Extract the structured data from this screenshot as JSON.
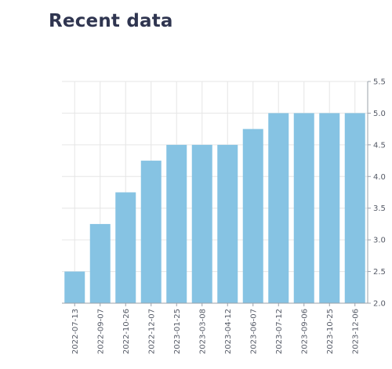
{
  "page": {
    "title": "Recent data"
  },
  "chart_data": {
    "type": "bar",
    "categories": [
      "2022-07-13",
      "2022-09-07",
      "2022-10-26",
      "2022-12-07",
      "2023-01-25",
      "2023-03-08",
      "2023-04-12",
      "2023-06-07",
      "2023-07-12",
      "2023-09-06",
      "2023-10-25",
      "2023-12-06"
    ],
    "values": [
      2.5,
      3.25,
      3.75,
      4.25,
      4.5,
      4.5,
      4.5,
      4.75,
      5.0,
      5.0,
      5.0,
      5.0
    ],
    "ylim": [
      2.0,
      5.5
    ],
    "yticks": [
      "2.0",
      "2.5",
      "3.0",
      "3.5",
      "4.0",
      "4.5",
      "5.0",
      "5.5"
    ],
    "y_axis_position": "right",
    "grid": true,
    "bar_color": "#86c3e3",
    "grid_color": "#e6e6e6",
    "axis_color": "#9aa0aa"
  }
}
